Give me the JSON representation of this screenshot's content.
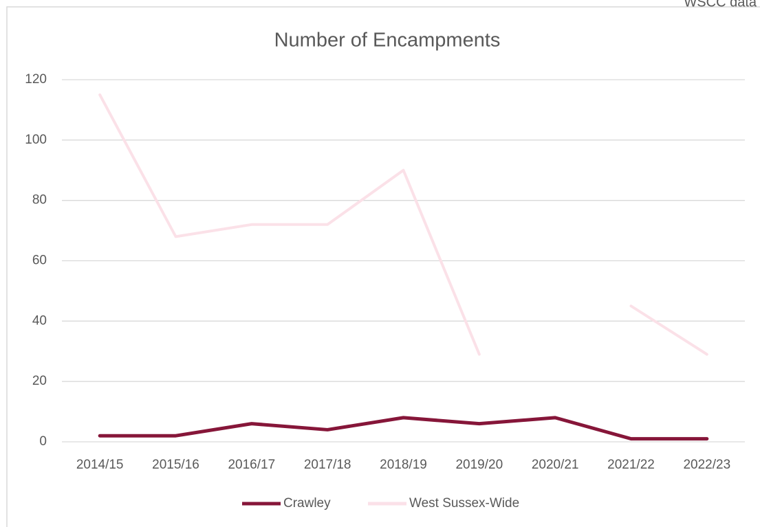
{
  "chart_data": {
    "type": "line",
    "title": "Number of Encampments",
    "annotation": "WSCC data",
    "categories": [
      "2014/15",
      "2015/16",
      "2016/17",
      "2017/18",
      "2018/19",
      "2019/20",
      "2020/21",
      "2021/22",
      "2022/23"
    ],
    "series": [
      {
        "name": "Crawley",
        "color": "#861639",
        "values": [
          2,
          2,
          6,
          4,
          8,
          6,
          8,
          1,
          1
        ]
      },
      {
        "name": "West Sussex-Wide",
        "color": "#fbe1e8",
        "values": [
          115,
          68,
          72,
          72,
          90,
          29,
          null,
          45,
          29
        ]
      }
    ],
    "ylim": [
      0,
      120
    ],
    "yticks": [
      0,
      20,
      40,
      60,
      80,
      100,
      120
    ],
    "grid": true,
    "legend": "bottom"
  }
}
